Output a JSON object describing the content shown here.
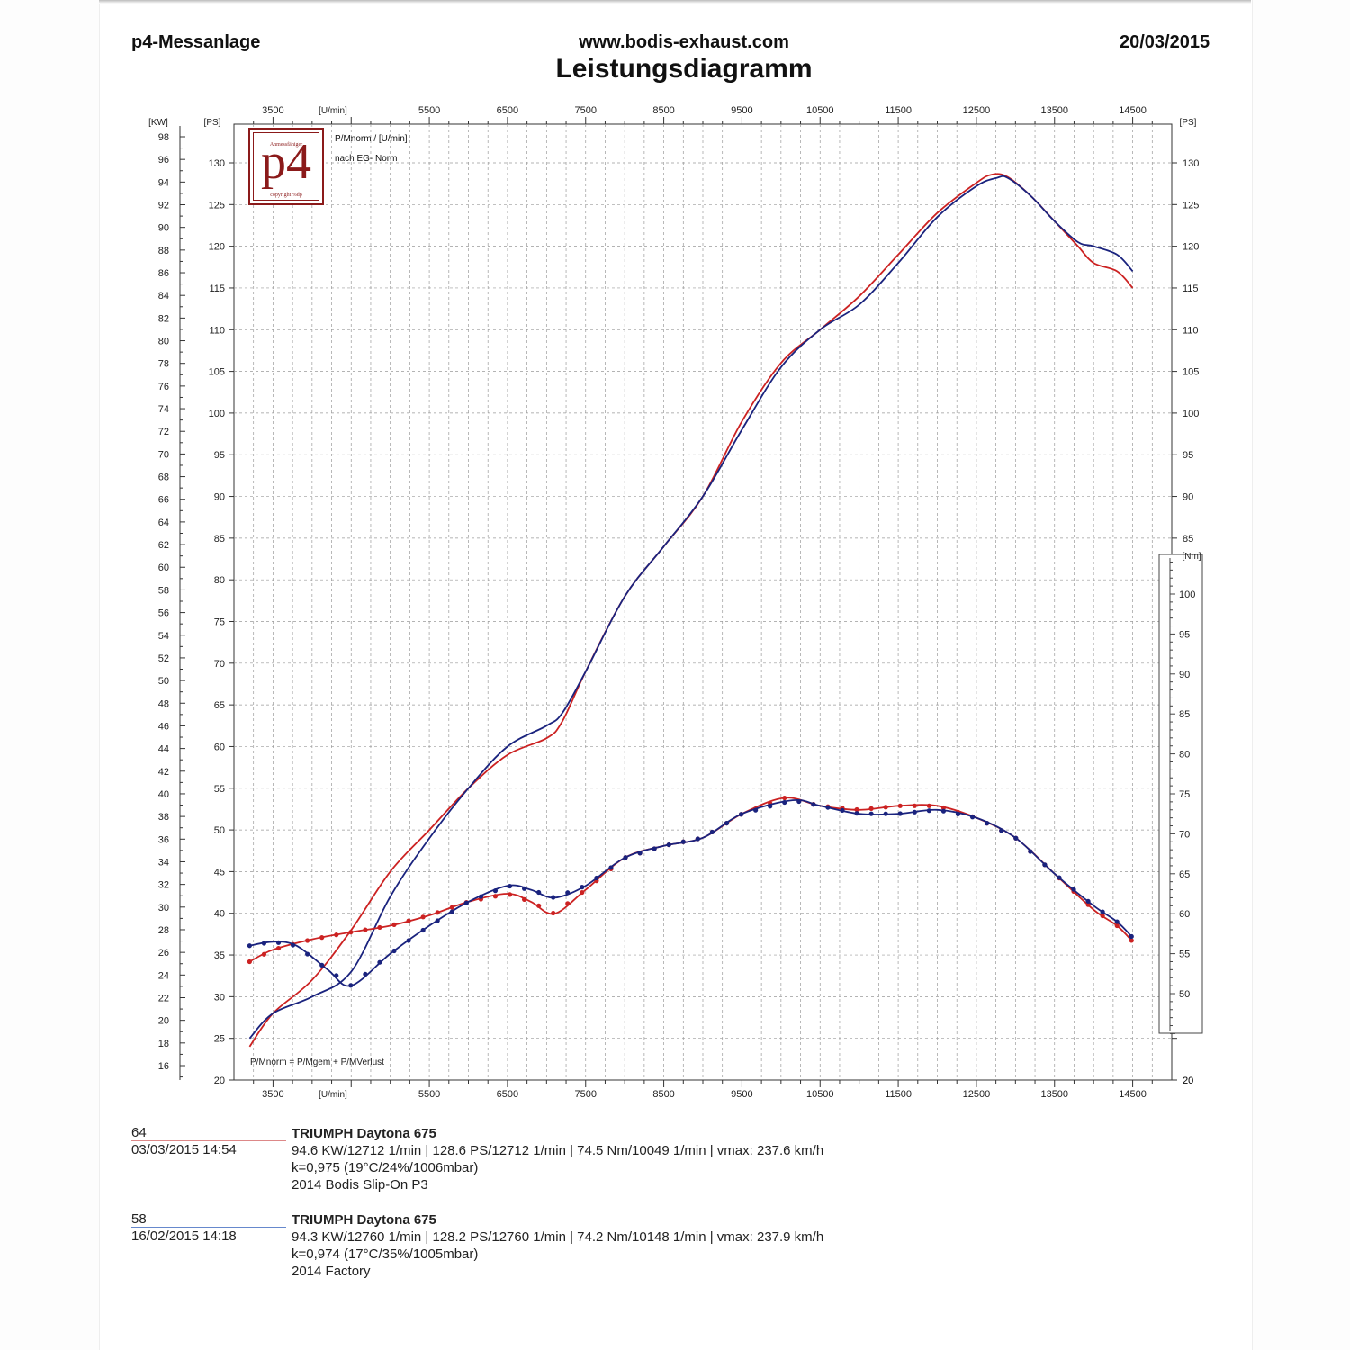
{
  "header": {
    "left": "p4-Messanlage",
    "center": "www.bodis-exhaust.com",
    "right": "20/03/2015",
    "title": "Leistungsdiagramm"
  },
  "logo": {
    "text": "p4",
    "small_top": "Anmessfähiger",
    "small_bottom": "copyright %dp"
  },
  "notes": {
    "line1": "P/Mnorm / [U/min]",
    "line2": "nach EG- Norm",
    "formula": "P/Mnorm = P/Mgem + P/MVerlust"
  },
  "colors": {
    "run64": "#cc2222",
    "run58": "#1a237e",
    "grid": "#9a9a9a"
  },
  "runs": [
    {
      "id": "64",
      "date": "03/03/2015  14:54",
      "name": "TRIUMPH Daytona 675",
      "stats": "94.6 KW/12712 1/min  |  128.6 PS/12712 1/min  |  74.5 Nm/10049 1/min | vmax: 237.6 km/h",
      "k": "k=0,975 (19°C/24%/1006mbar)",
      "desc": "2014 Bodis Slip-On P3"
    },
    {
      "id": "58",
      "date": "16/02/2015  14:18",
      "name": "TRIUMPH Daytona 675",
      "stats": "94.3 KW/12760 1/min  |  128.2 PS/12760 1/min  |  74.2 Nm/10148 1/min | vmax: 237.9 km/h",
      "k": "k=0,974 (17°C/35%/1005mbar)",
      "desc": "2014 Factory"
    }
  ],
  "chart_data": {
    "type": "line",
    "x_unit_label": "[U/min]",
    "x_ticks": [
      3500,
      5500,
      6500,
      7500,
      8500,
      9500,
      10500,
      11500,
      12500,
      13500,
      14500
    ],
    "xlim": [
      3000,
      15000
    ],
    "kw_label": "[KW]",
    "kw_ticks": [
      16,
      18,
      20,
      22,
      24,
      26,
      28,
      30,
      32,
      34,
      36,
      38,
      40,
      42,
      44,
      46,
      48,
      50,
      52,
      54,
      56,
      58,
      60,
      62,
      64,
      66,
      68,
      70,
      72,
      74,
      76,
      78,
      80,
      82,
      84,
      86,
      88,
      90,
      92,
      94,
      96,
      98
    ],
    "ps_label": "[PS]",
    "ps_ticks": [
      20,
      25,
      30,
      35,
      40,
      45,
      50,
      55,
      60,
      65,
      70,
      75,
      80,
      85,
      90,
      95,
      100,
      105,
      110,
      115,
      120,
      125,
      130
    ],
    "ps_lim": [
      20,
      135
    ],
    "nm_label": "[Nm]",
    "nm_ticks": [
      50,
      55,
      60,
      65,
      70,
      75,
      80,
      85,
      90,
      95,
      100
    ],
    "nm_lim": [
      45,
      105
    ],
    "series": [
      {
        "name": "64",
        "kind": "power",
        "axis": "PS",
        "x": [
          3200,
          3500,
          4000,
          4500,
          5000,
          5500,
          6000,
          6500,
          7000,
          7200,
          7500,
          8000,
          8500,
          9000,
          9500,
          10000,
          10500,
          11000,
          11500,
          12000,
          12500,
          12700,
          12900,
          13200,
          13500,
          13800,
          14000,
          14300,
          14500
        ],
        "y": [
          24,
          28,
          32,
          38,
          45,
          50,
          55,
          59,
          61,
          63,
          69,
          78,
          84,
          90,
          99,
          106,
          110,
          114,
          119,
          124,
          127.6,
          128.6,
          128.3,
          126,
          123,
          120,
          118,
          117,
          115
        ]
      },
      {
        "name": "58",
        "kind": "power",
        "axis": "PS",
        "x": [
          3200,
          3500,
          4000,
          4500,
          5000,
          5500,
          6000,
          6500,
          7000,
          7200,
          7500,
          8000,
          8500,
          9000,
          9500,
          10000,
          10500,
          11000,
          11500,
          12000,
          12500,
          12760,
          12900,
          13200,
          13500,
          13800,
          14000,
          14300,
          14500
        ],
        "y": [
          25,
          28,
          30,
          33,
          42,
          49,
          55,
          60,
          62.5,
          64,
          69,
          78,
          84,
          90,
          98,
          105.5,
          110,
          113,
          118,
          123.5,
          127.2,
          128.2,
          128.2,
          126,
          123,
          120.5,
          120,
          119,
          117
        ]
      },
      {
        "name": "64",
        "kind": "torque",
        "axis": "Nm",
        "x": [
          3200,
          3500,
          4000,
          4500,
          5000,
          5500,
          6000,
          6500,
          6800,
          7100,
          7500,
          8000,
          8500,
          9000,
          9500,
          10049,
          10500,
          11000,
          11500,
          12000,
          12500,
          13000,
          13500,
          14000,
          14300,
          14500
        ],
        "y": [
          54,
          55.5,
          56.8,
          57.7,
          58.5,
          59.8,
          61.5,
          62.5,
          61.5,
          60,
          63,
          67,
          68.5,
          69.5,
          72.5,
          74.5,
          73.5,
          73,
          73.5,
          73.5,
          72,
          69.5,
          65,
          60.5,
          58.5,
          56.5
        ]
      },
      {
        "name": "58",
        "kind": "torque",
        "axis": "Nm",
        "x": [
          3200,
          3500,
          3800,
          4200,
          4500,
          5000,
          5500,
          6000,
          6500,
          6800,
          7100,
          7500,
          8000,
          8500,
          9000,
          9500,
          10148,
          10500,
          11000,
          11500,
          12000,
          12500,
          13000,
          13500,
          14000,
          14300,
          14500
        ],
        "y": [
          56,
          56.5,
          56,
          53,
          51,
          55,
          58.5,
          61.5,
          63.5,
          63,
          62,
          63.5,
          67,
          68.5,
          69.5,
          72.5,
          74.2,
          73.5,
          72.5,
          72.5,
          73,
          72,
          69.5,
          65,
          61,
          59,
          57
        ]
      }
    ]
  }
}
